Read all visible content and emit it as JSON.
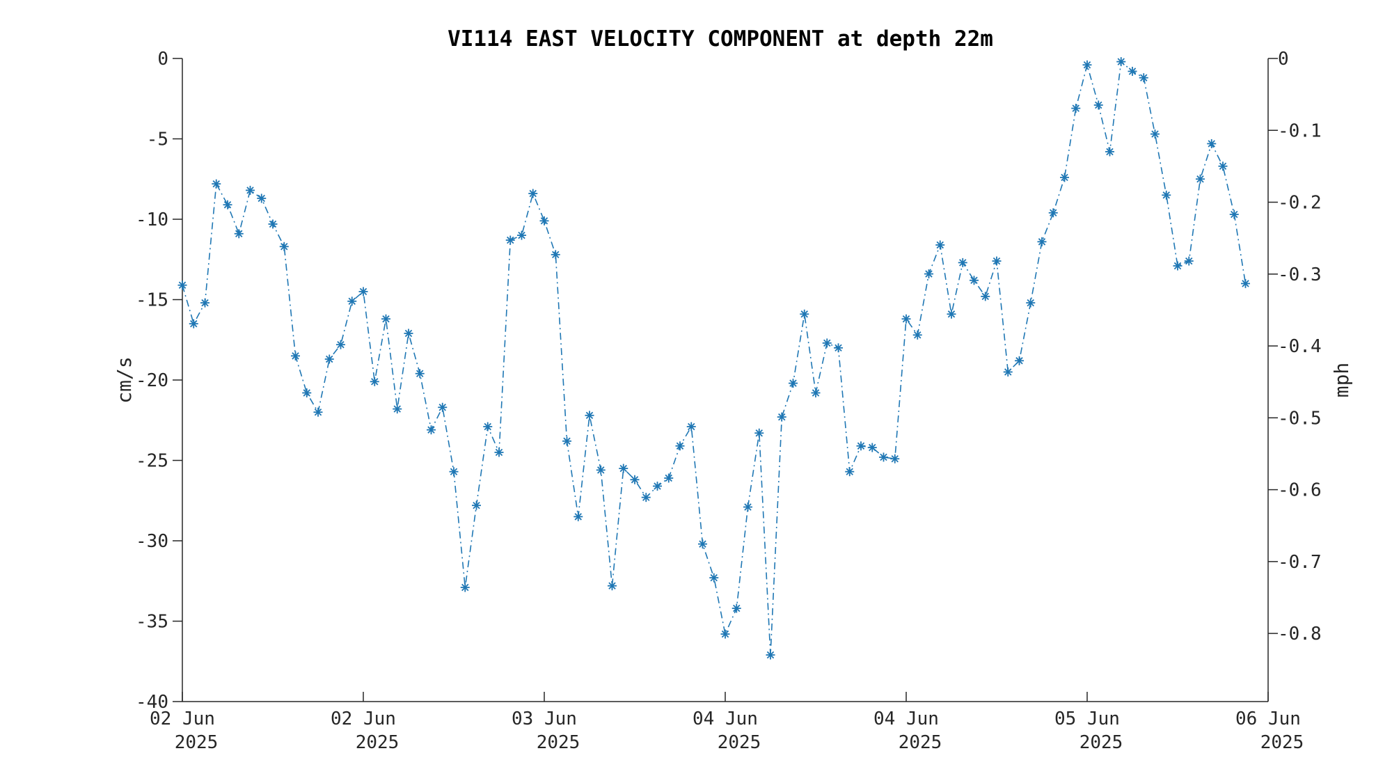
{
  "chart_data": {
    "type": "line",
    "title": "VI114 EAST VELOCITY COMPONENT at depth 22m",
    "ylabel": "cm/s",
    "ylabel_right": "mph",
    "ylim": [
      -40,
      0
    ],
    "ylim_right": [
      -0.8948,
      0
    ],
    "yticks": [
      0,
      -5,
      -10,
      -15,
      -20,
      -25,
      -30,
      -35,
      -40
    ],
    "yticks_right": [
      0,
      -0.1,
      -0.2,
      -0.3,
      -0.4,
      -0.5,
      -0.6,
      -0.7,
      -0.8
    ],
    "ytick_labels_right": [
      "0",
      "-0.1",
      "-0.2",
      "-0.3",
      "-0.4",
      "-0.5",
      "-0.6",
      "-0.7",
      "-0.8"
    ],
    "xlim": [
      "2025-06-02 00:00",
      "2025-06-06 00:00"
    ],
    "xticks": [
      {
        "x": "2025-06-02 00:00",
        "day": "02 Jun",
        "year": "2025"
      },
      {
        "x": "2025-06-02 16:00",
        "day": "02 Jun",
        "year": "2025"
      },
      {
        "x": "2025-06-03 08:00",
        "day": "03 Jun",
        "year": "2025"
      },
      {
        "x": "2025-06-04 00:00",
        "day": "04 Jun",
        "year": "2025"
      },
      {
        "x": "2025-06-04 16:00",
        "day": "04 Jun",
        "year": "2025"
      },
      {
        "x": "2025-06-05 08:00",
        "day": "05 Jun",
        "year": "2025"
      },
      {
        "x": "2025-06-06 00:00",
        "day": "06 Jun",
        "year": "2025"
      }
    ],
    "grid": false,
    "legend": "none",
    "marker": "asterisk",
    "line_style": "dash-dot",
    "color": "#1f77b4",
    "series": [
      {
        "x_start": "2025-06-02 00:00",
        "x_step_minutes": 60,
        "values": [
          -14.1,
          -16.5,
          -15.2,
          -7.8,
          -9.1,
          -10.9,
          -8.2,
          -8.7,
          -10.3,
          -11.7,
          -18.5,
          -20.8,
          -22.0,
          -18.7,
          -17.8,
          -15.1,
          -14.5,
          -20.1,
          -16.2,
          -21.8,
          -17.1,
          -19.6,
          -23.1,
          -21.7,
          -25.7,
          -32.9,
          -27.8,
          -22.9,
          -24.5,
          -11.3,
          -11.0,
          -8.4,
          -10.1,
          -12.2,
          -23.8,
          -28.5,
          -22.2,
          -25.6,
          -32.8,
          -25.5,
          -26.2,
          -27.3,
          -26.6,
          -26.1,
          -24.1,
          -22.9,
          -30.2,
          -32.3,
          -35.8,
          -34.2,
          -27.9,
          -23.3,
          -37.1,
          -22.3,
          -20.2,
          -15.9,
          -20.8,
          -17.7,
          -18.0,
          -25.7,
          -24.1,
          -24.2,
          -24.8,
          -24.9,
          -16.2,
          -17.2,
          -13.4,
          -11.6,
          -15.9,
          -12.7,
          -13.8,
          -14.8,
          -12.6,
          -19.5,
          -18.8,
          -15.2,
          -11.4,
          -9.6,
          -7.4,
          -3.1,
          -0.4,
          -2.9,
          -5.8,
          -0.2,
          -0.8,
          -1.2,
          -4.7,
          -8.5,
          -12.9,
          -12.6,
          -7.5,
          -5.3,
          -6.7,
          -9.7,
          -14.0
        ]
      }
    ]
  }
}
